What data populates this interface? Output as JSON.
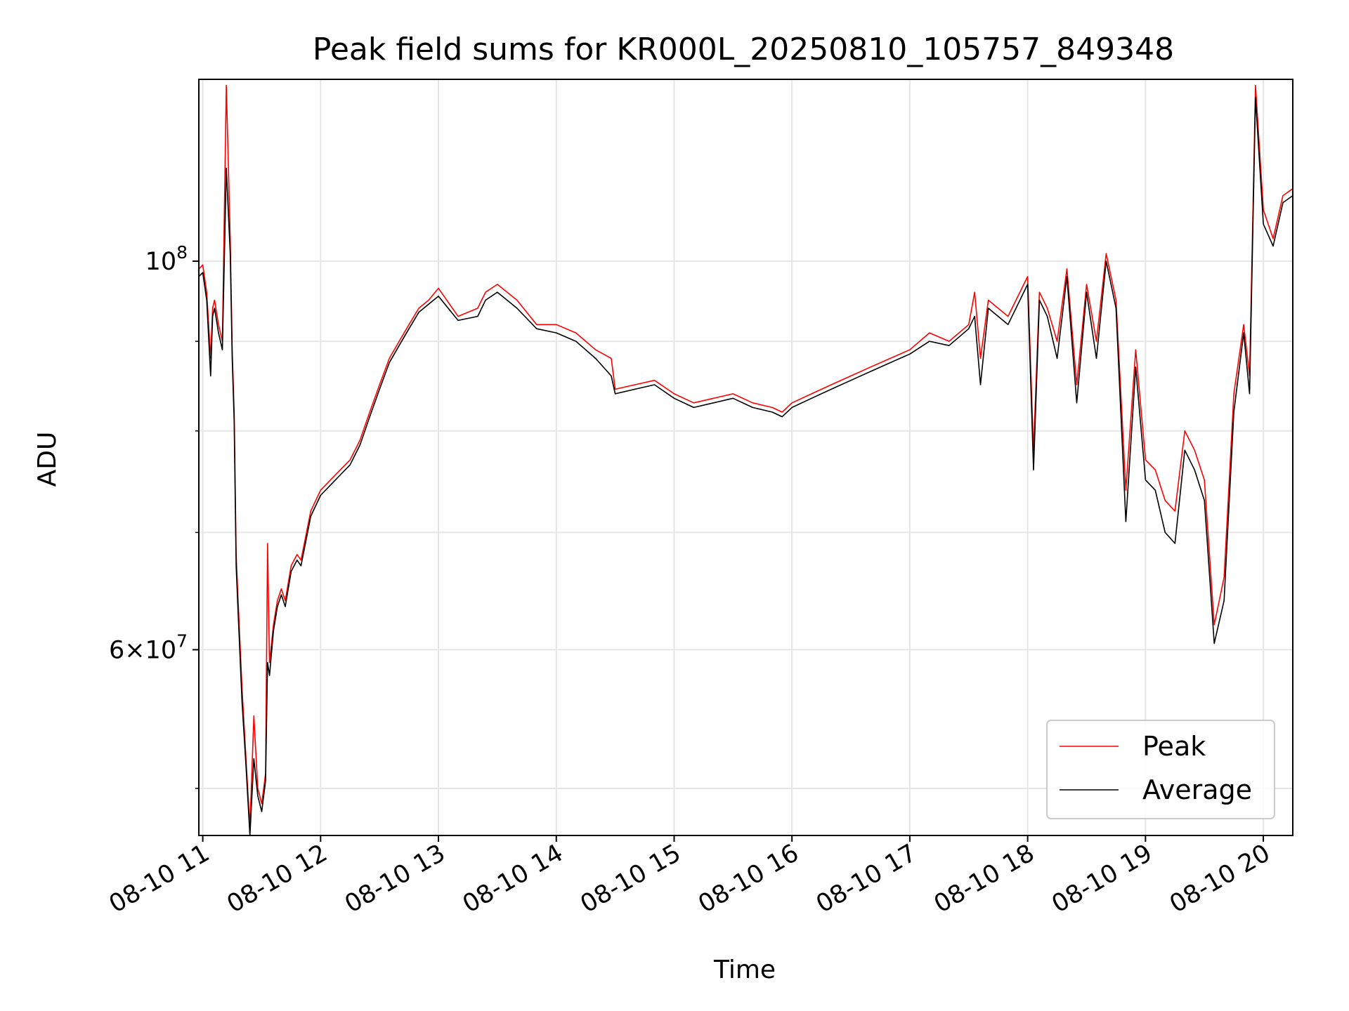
{
  "chart_data": {
    "type": "line",
    "title": "Peak field sums for KR000L_20250810_105757_849348",
    "xlabel": "Time",
    "ylabel": "ADU",
    "yscale": "log",
    "xlim": [
      "2025-08-10T10:58",
      "2025-08-10T20:15"
    ],
    "ylim": [
      47000000,
      127000000
    ],
    "x_ticks": [
      {
        "t": "2025-08-10T11:00",
        "label": "08-10 11"
      },
      {
        "t": "2025-08-10T12:00",
        "label": "08-10 12"
      },
      {
        "t": "2025-08-10T13:00",
        "label": "08-10 13"
      },
      {
        "t": "2025-08-10T14:00",
        "label": "08-10 14"
      },
      {
        "t": "2025-08-10T15:00",
        "label": "08-10 15"
      },
      {
        "t": "2025-08-10T16:00",
        "label": "08-10 16"
      },
      {
        "t": "2025-08-10T17:00",
        "label": "08-10 17"
      },
      {
        "t": "2025-08-10T18:00",
        "label": "08-10 18"
      },
      {
        "t": "2025-08-10T19:00",
        "label": "08-10 19"
      },
      {
        "t": "2025-08-10T20:00",
        "label": "08-10 20"
      }
    ],
    "y_major_ticks": [
      {
        "value": 60000000,
        "label_base": "6",
        "label_exp": "7"
      },
      {
        "value": 100000000,
        "label_base": "10",
        "label_exp": "8"
      }
    ],
    "y_minor_ticks": [
      50000000,
      70000000,
      80000000,
      90000000
    ],
    "grid": true,
    "legend_position": "lower right",
    "x": [
      "10:58",
      "11:00",
      "11:02",
      "11:04",
      "11:05",
      "11:06",
      "11:08",
      "11:10",
      "11:12",
      "11:14",
      "11:15",
      "11:16",
      "11:17",
      "11:18",
      "11:20",
      "11:22",
      "11:24",
      "11:26",
      "11:28",
      "11:30",
      "11:32",
      "11:33",
      "11:34",
      "11:36",
      "11:38",
      "11:40",
      "11:42",
      "11:45",
      "11:48",
      "11:50",
      "11:55",
      "12:00",
      "12:05",
      "12:10",
      "12:15",
      "12:20",
      "12:25",
      "12:30",
      "12:35",
      "12:40",
      "12:45",
      "12:50",
      "12:55",
      "13:00",
      "13:10",
      "13:20",
      "13:22",
      "13:24",
      "13:30",
      "13:40",
      "13:50",
      "14:00",
      "14:10",
      "14:20",
      "14:28",
      "14:30",
      "14:40",
      "14:50",
      "15:00",
      "15:10",
      "15:20",
      "15:30",
      "15:40",
      "15:50",
      "15:55",
      "16:00",
      "16:10",
      "16:20",
      "16:30",
      "16:40",
      "16:50",
      "17:00",
      "17:10",
      "17:20",
      "17:30",
      "17:33",
      "17:36",
      "17:40",
      "17:50",
      "18:00",
      "18:03",
      "18:06",
      "18:10",
      "18:15",
      "18:20",
      "18:25",
      "18:30",
      "18:35",
      "18:40",
      "18:45",
      "18:50",
      "18:55",
      "19:00",
      "19:05",
      "19:10",
      "19:15",
      "19:20",
      "19:25",
      "19:30",
      "19:35",
      "19:40",
      "19:45",
      "19:50",
      "19:53",
      "19:56",
      "20:00",
      "20:05",
      "20:10",
      "20:15"
    ],
    "series": [
      {
        "name": "Peak",
        "color": "#ff0000",
        "values": [
          99000000,
          99500000,
          96000000,
          88000000,
          94000000,
          95000000,
          92000000,
          90000000,
          126000000,
          103000000,
          89000000,
          82000000,
          68000000,
          64000000,
          57000000,
          52000000,
          47500000,
          55000000,
          50000000,
          49000000,
          51000000,
          69000000,
          59000000,
          62000000,
          64000000,
          65000000,
          64000000,
          67000000,
          68000000,
          67500000,
          72000000,
          74000000,
          75000000,
          76000000,
          77000000,
          79000000,
          82000000,
          85000000,
          88000000,
          90000000,
          92000000,
          94000000,
          95000000,
          96500000,
          93000000,
          94000000,
          95000000,
          96000000,
          97000000,
          95000000,
          92000000,
          92000000,
          91000000,
          89000000,
          88000000,
          84500000,
          85000000,
          85500000,
          84000000,
          83000000,
          83500000,
          84000000,
          83000000,
          82500000,
          82000000,
          83000000,
          84000000,
          85000000,
          86000000,
          87000000,
          88000000,
          89000000,
          91000000,
          90000000,
          92000000,
          96000000,
          88000000,
          95000000,
          93000000,
          98000000,
          78000000,
          96000000,
          94000000,
          90000000,
          99000000,
          85000000,
          97000000,
          90000000,
          101000000,
          95000000,
          74000000,
          89000000,
          77000000,
          76000000,
          73000000,
          72000000,
          80000000,
          78000000,
          75000000,
          62000000,
          66000000,
          84000000,
          92000000,
          86000000,
          126000000,
          107000000,
          103000000,
          109000000,
          110000000
        ]
      },
      {
        "name": "Average",
        "color": "#000000",
        "values": [
          98000000,
          98500000,
          95000000,
          86000000,
          93000000,
          94000000,
          91000000,
          89000000,
          113000000,
          101000000,
          88000000,
          81000000,
          67000000,
          63000000,
          56000000,
          51500000,
          47000000,
          52000000,
          49500000,
          48500000,
          50500000,
          59000000,
          58000000,
          61500000,
          63500000,
          64500000,
          63500000,
          66500000,
          67500000,
          67000000,
          71500000,
          73500000,
          74500000,
          75500000,
          76500000,
          78500000,
          81500000,
          84500000,
          87500000,
          89500000,
          91500000,
          93500000,
          94500000,
          95500000,
          92500000,
          93000000,
          94000000,
          95000000,
          96000000,
          94000000,
          91500000,
          91000000,
          90000000,
          88000000,
          86000000,
          84000000,
          84500000,
          85000000,
          83500000,
          82500000,
          83000000,
          83500000,
          82500000,
          82000000,
          81500000,
          82500000,
          83500000,
          84500000,
          85500000,
          86500000,
          87500000,
          88500000,
          90000000,
          89500000,
          91500000,
          93000000,
          85000000,
          94000000,
          92000000,
          97000000,
          76000000,
          95000000,
          93000000,
          88000000,
          98000000,
          83000000,
          96000000,
          88000000,
          100000000,
          94000000,
          71000000,
          87000000,
          75000000,
          74000000,
          70000000,
          69000000,
          78000000,
          76000000,
          73000000,
          60500000,
          64000000,
          82000000,
          91000000,
          84000000,
          124000000,
          105000000,
          102000000,
          108000000,
          109000000
        ]
      }
    ]
  }
}
